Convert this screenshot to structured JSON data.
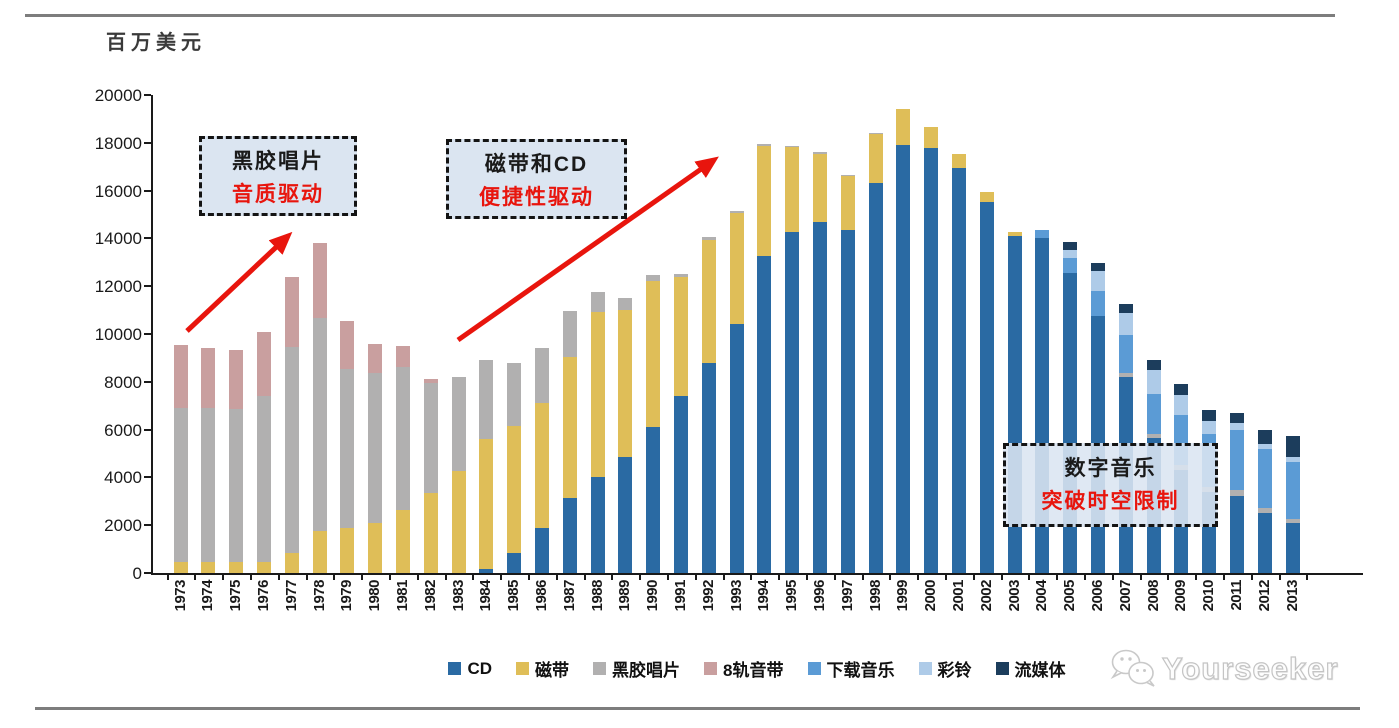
{
  "page": {
    "unit_label": "百万美元",
    "watermark_text": "Yourseeker",
    "divider_color": "#7d7d7d"
  },
  "chart_data": {
    "type": "bar",
    "stacked": true,
    "title": "",
    "ylabel": "百万美元",
    "xlabel": "",
    "ylim": [
      0,
      20000
    ],
    "ytick_step": 2000,
    "ytick_labels": [
      "0",
      "2000",
      "4000",
      "6000",
      "8000",
      "10000",
      "12000",
      "14000",
      "16000",
      "18000",
      "20000"
    ],
    "grid": false,
    "legend_position": "bottom",
    "categories": [
      "1973",
      "1974",
      "1975",
      "1976",
      "1977",
      "1978",
      "1979",
      "1980",
      "1981",
      "1982",
      "1983",
      "1984",
      "1985",
      "1986",
      "1987",
      "1988",
      "1989",
      "1990",
      "1991",
      "1992",
      "1993",
      "1994",
      "1995",
      "1996",
      "1997",
      "1998",
      "1999",
      "2000",
      "2001",
      "2002",
      "2003",
      "2004",
      "2005",
      "2006",
      "2007",
      "2008",
      "2009",
      "2010",
      "2011",
      "2012",
      "2013"
    ],
    "series": [
      {
        "name": "CD",
        "color": "#2A6AA3",
        "values": [
          0,
          0,
          0,
          0,
          0,
          0,
          0,
          0,
          0,
          0,
          0,
          150,
          850,
          1900,
          3150,
          4000,
          4850,
          6100,
          7400,
          8800,
          10400,
          13250,
          14270,
          14700,
          14350,
          16320,
          17900,
          17800,
          16950,
          15520,
          14100,
          14000,
          12550,
          10750,
          8200,
          5650,
          4330,
          3400,
          3220,
          2510,
          2090
        ]
      },
      {
        "name": "磁带",
        "color": "#DFBE58",
        "values": [
          450,
          450,
          450,
          450,
          850,
          1750,
          1900,
          2100,
          2650,
          3350,
          4250,
          5450,
          5300,
          5200,
          5900,
          6900,
          6150,
          6100,
          5000,
          5150,
          4650,
          4600,
          3550,
          2850,
          2250,
          2050,
          1500,
          850,
          600,
          420,
          170,
          0,
          0,
          0,
          0,
          0,
          0,
          0,
          0,
          0,
          0
        ]
      },
      {
        "name": "黑胶唱片",
        "color": "#B1B0B0",
        "values": [
          6450,
          6450,
          6400,
          6950,
          8600,
          8900,
          6650,
          6250,
          5950,
          4600,
          3950,
          3300,
          2650,
          2300,
          1900,
          850,
          500,
          250,
          100,
          100,
          100,
          100,
          50,
          50,
          50,
          50,
          0,
          0,
          0,
          0,
          0,
          0,
          0,
          0,
          170,
          170,
          170,
          180,
          250,
          210,
          170
        ]
      },
      {
        "name": "8轨音带",
        "color": "#C99F9F",
        "values": [
          2650,
          2500,
          2500,
          2700,
          2950,
          3150,
          2000,
          1250,
          900,
          150,
          0,
          0,
          0,
          0,
          0,
          0,
          0,
          0,
          0,
          0,
          0,
          0,
          0,
          0,
          0,
          0,
          0,
          0,
          0,
          0,
          0,
          0,
          0,
          0,
          0,
          0,
          0,
          0,
          0,
          0,
          0
        ]
      },
      {
        "name": "下载音乐",
        "color": "#5B9BD5",
        "values": [
          0,
          0,
          0,
          0,
          0,
          0,
          0,
          0,
          0,
          0,
          0,
          0,
          0,
          0,
          0,
          0,
          0,
          0,
          0,
          0,
          0,
          0,
          0,
          0,
          0,
          0,
          0,
          0,
          0,
          0,
          0,
          350,
          630,
          1050,
          1600,
          1680,
          2100,
          2250,
          2510,
          2470,
          2380
        ]
      },
      {
        "name": "彩铃",
        "color": "#AECBE8",
        "values": [
          0,
          0,
          0,
          0,
          0,
          0,
          0,
          0,
          0,
          0,
          0,
          0,
          0,
          0,
          0,
          0,
          0,
          0,
          0,
          0,
          0,
          0,
          0,
          0,
          0,
          0,
          0,
          0,
          0,
          0,
          0,
          0,
          340,
          840,
          910,
          1000,
          830,
          550,
          300,
          210,
          210
        ]
      },
      {
        "name": "流媒体",
        "color": "#1C3D5C",
        "values": [
          0,
          0,
          0,
          0,
          0,
          0,
          0,
          0,
          0,
          0,
          0,
          0,
          0,
          0,
          0,
          0,
          0,
          0,
          0,
          0,
          0,
          0,
          0,
          0,
          0,
          0,
          0,
          0,
          0,
          0,
          0,
          0,
          330,
          330,
          380,
          420,
          480,
          440,
          420,
          590,
          880
        ]
      }
    ],
    "annotations": [
      {
        "line1": "黑胶唱片",
        "line2": "音质驱动",
        "line1_color": "#1a1a1a",
        "line2_color": "#e8150d"
      },
      {
        "line1": "磁带和CD",
        "line2": "便捷性驱动",
        "line1_color": "#1a1a1a",
        "line2_color": "#e8150d"
      },
      {
        "line1": "数字音乐",
        "line2": "突破时空限制",
        "line1_color": "#1a1a1a",
        "line2_color": "#e8150d"
      }
    ],
    "arrow_color": "#e8150d",
    "arrows": [
      {
        "from": [
          187,
          331
        ],
        "to": [
          288,
          236
        ]
      },
      {
        "from": [
          458,
          340
        ],
        "to": [
          714,
          160
        ]
      }
    ]
  }
}
